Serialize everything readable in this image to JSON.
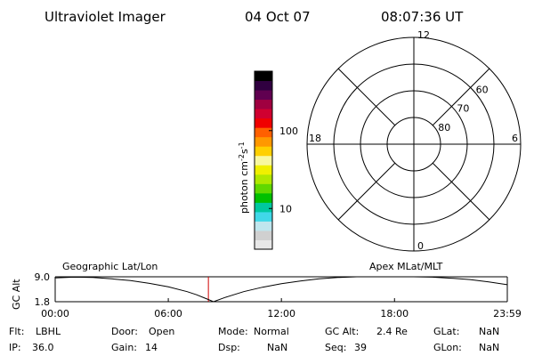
{
  "header": {
    "title": "Ultraviolet Imager",
    "date": "04 Oct 07",
    "time": "08:07:36 UT"
  },
  "colorbar": {
    "unit": "photon cm",
    "exp1": "-2",
    "mid": "s",
    "exp2": "-1",
    "lim": [
      3,
      580
    ],
    "ticks": [
      10,
      100
    ]
  },
  "polar": {
    "top": "12",
    "left": "18",
    "right": "6",
    "bottom": "0",
    "lat_rings": [
      80,
      70,
      60
    ],
    "lat_lim": [
      90,
      50
    ]
  },
  "orbit": {
    "left_label": "Geographic Lat/Lon",
    "right_label": "Apex MLat/MLT",
    "y_label": "GC Alt",
    "ylim": [
      1.8,
      9.0
    ],
    "yticks": [
      {
        "value": 9.0,
        "label": "9.0"
      },
      {
        "value": 1.8,
        "label": "1.8"
      }
    ],
    "xlim": [
      0,
      23.983
    ],
    "xticks": [
      {
        "value": 0,
        "label": "00:00"
      },
      {
        "value": 6,
        "label": "06:00"
      },
      {
        "value": 12,
        "label": "12:00"
      },
      {
        "value": 18,
        "label": "18:00"
      },
      {
        "value": 23.983,
        "label": "23:59"
      }
    ],
    "x": [
      0,
      1,
      2,
      3,
      4,
      5,
      6,
      7,
      7.5,
      8,
      8.4,
      9,
      10,
      11,
      12,
      13,
      14,
      15,
      16,
      17,
      18,
      19,
      20,
      21,
      22,
      23,
      23.983
    ],
    "values": [
      8.7,
      8.9,
      8.8,
      8.4,
      7.9,
      7.1,
      6.1,
      4.7,
      3.8,
      2.7,
      1.8,
      3.0,
      4.7,
      6.0,
      7.0,
      7.8,
      8.4,
      8.8,
      9.0,
      9.0,
      9.0,
      9.0,
      8.9,
      8.6,
      8.2,
      7.5,
      6.7
    ],
    "current_time": 8.127
  },
  "status": [
    [
      {
        "label": "Flt:",
        "value": "LBHL"
      },
      {
        "label": "Door:",
        "value": "Open"
      },
      {
        "label": "Mode:",
        "value": "Normal"
      },
      {
        "label": "GC Alt:",
        "value": "2.4 Re"
      },
      {
        "label": "GLat:",
        "value": "NaN"
      }
    ],
    [
      {
        "label": "IP:",
        "value": "36.0"
      },
      {
        "label": "Gain:",
        "value": "14"
      },
      {
        "label": "Dsp:",
        "value": "NaN"
      },
      {
        "label": "Seq:",
        "value": "39"
      },
      {
        "label": "GLon:",
        "value": "NaN"
      }
    ]
  ]
}
